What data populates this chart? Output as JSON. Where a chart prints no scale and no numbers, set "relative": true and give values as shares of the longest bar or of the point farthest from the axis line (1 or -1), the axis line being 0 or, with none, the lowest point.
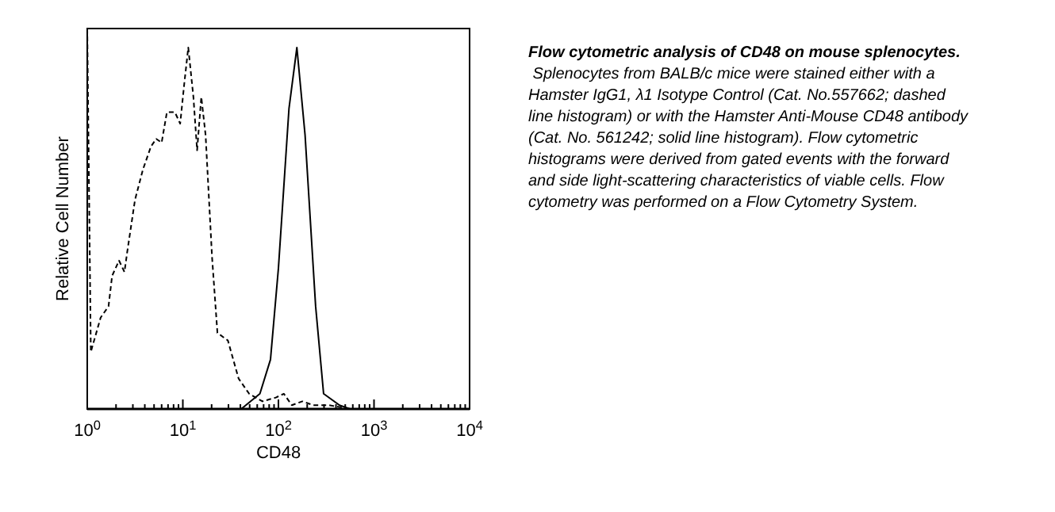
{
  "chart_data": {
    "type": "line",
    "relative": true,
    "log": "x",
    "title": "Flow cytometric analysis of CD48 on mouse splenocytes.",
    "annotations": [
      "Splenocytes from BALB/c mice were stained either with a Hamster IgG1, λ1 Isotype Control (Cat. No.557662; dashed line histogram) or with the Hamster Anti-Mouse CD48 antibody (Cat. No. 561242; solid line histogram). Flow cytometric histograms were derived from gated events with the forward and side light-scattering characteristics of viable cells. Flow cytometry was performed on a Flow Cytometry System."
    ],
    "xlabel": "CD48",
    "ylabel": "Relative Cell Number",
    "xlim": [
      1,
      10000
    ],
    "xticks": [
      {
        "value": 1,
        "label": "10$^{0}$"
      },
      {
        "value": 2,
        "label": null
      },
      {
        "value": 3,
        "label": null
      },
      {
        "value": 4,
        "label": null
      },
      {
        "value": 5,
        "label": null
      },
      {
        "value": 6,
        "label": null
      },
      {
        "value": 7,
        "label": null
      },
      {
        "value": 8,
        "label": null
      },
      {
        "value": 9,
        "label": null
      },
      {
        "value": 10,
        "label": "10$^{1}$"
      },
      {
        "value": 20,
        "label": null
      },
      {
        "value": 30,
        "label": null
      },
      {
        "value": 40,
        "label": null
      },
      {
        "value": 50,
        "label": null
      },
      {
        "value": 60,
        "label": null
      },
      {
        "value": 70,
        "label": null
      },
      {
        "value": 80,
        "label": null
      },
      {
        "value": 90,
        "label": null
      },
      {
        "value": 100,
        "label": "10$^{2}$"
      },
      {
        "value": 200,
        "label": null
      },
      {
        "value": 300,
        "label": null
      },
      {
        "value": 400,
        "label": null
      },
      {
        "value": 500,
        "label": null
      },
      {
        "value": 600,
        "label": null
      },
      {
        "value": 700,
        "label": null
      },
      {
        "value": 800,
        "label": null
      },
      {
        "value": 900,
        "label": null
      },
      {
        "value": 1000,
        "label": "10$^{3}$"
      },
      {
        "value": 2000,
        "label": null
      },
      {
        "value": 3000,
        "label": null
      },
      {
        "value": 4000,
        "label": null
      },
      {
        "value": 5000,
        "label": null
      },
      {
        "value": 6000,
        "label": null
      },
      {
        "value": 7000,
        "label": null
      },
      {
        "value": 8000,
        "label": null
      },
      {
        "value": 9000,
        "label": null
      },
      {
        "value": 10000,
        "label": "10$^{4}$"
      }
    ],
    "series": [
      {
        "color": "#000000",
        "line_style": "dashed",
        "x": [
          1,
          1,
          1.09,
          1.38,
          1.67,
          1.82,
          2.15,
          2.45,
          2.61,
          3.16,
          3.83,
          4.64,
          5.27,
          6.0,
          6.81,
          8.26,
          9.38,
          10.4,
          11.4,
          12.9,
          14.1,
          15.6,
          17.3,
          20.2,
          23.0,
          29.6,
          38.3,
          49.4,
          68.1,
          93.8,
          114,
          138,
          178,
          230,
          337,
          562
        ],
        "values": [
          0,
          1,
          0.15,
          0.24,
          0.27,
          0.35,
          0.39,
          0.36,
          0.41,
          0.55,
          0.63,
          0.69,
          0.71,
          0.7,
          0.78,
          0.78,
          0.75,
          0.86,
          0.95,
          0.82,
          0.68,
          0.82,
          0.72,
          0.4,
          0.2,
          0.18,
          0.08,
          0.04,
          0.02,
          0.03,
          0.04,
          0.01,
          0.02,
          0.01,
          0.01,
          0
        ]
      },
      {
        "color": "#000000",
        "line_style": "solid",
        "x": [
          40.8,
          64,
          82.6,
          100,
          129,
          156,
          190,
          245,
          297,
          435,
          562
        ],
        "values": [
          0,
          0.04,
          0.13,
          0.37,
          0.79,
          0.95,
          0.72,
          0.27,
          0.04,
          0.01,
          0
        ]
      }
    ]
  }
}
